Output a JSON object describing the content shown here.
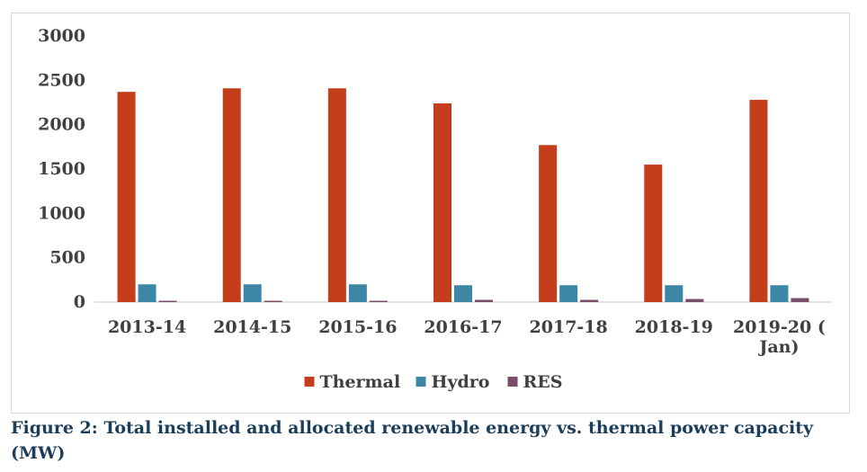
{
  "chart_data": {
    "type": "bar",
    "categories": [
      "2013-14",
      "2014-15",
      "2015-16",
      "2016-17",
      "2017-18",
      "2018-19",
      "2019-20 ( Jan)"
    ],
    "series": [
      {
        "name": "Thermal",
        "color": "#c43e1c",
        "values": [
          2370,
          2410,
          2410,
          2240,
          1770,
          1550,
          2280
        ]
      },
      {
        "name": "Hydro",
        "color": "#3c87a6",
        "values": [
          200,
          200,
          200,
          190,
          190,
          190,
          190
        ]
      },
      {
        "name": "RES",
        "color": "#7a4d6b",
        "values": [
          15,
          15,
          15,
          25,
          25,
          35,
          45
        ]
      }
    ],
    "y_ticks": [
      "0",
      "500",
      "1000",
      "1500",
      "2000",
      "2500",
      "3000"
    ],
    "ylim": [
      0,
      3000
    ],
    "grid": false,
    "legend_position": "bottom"
  },
  "caption": "Figure 2: Total installed and allocated renewable energy vs. thermal power capacity (MW)"
}
